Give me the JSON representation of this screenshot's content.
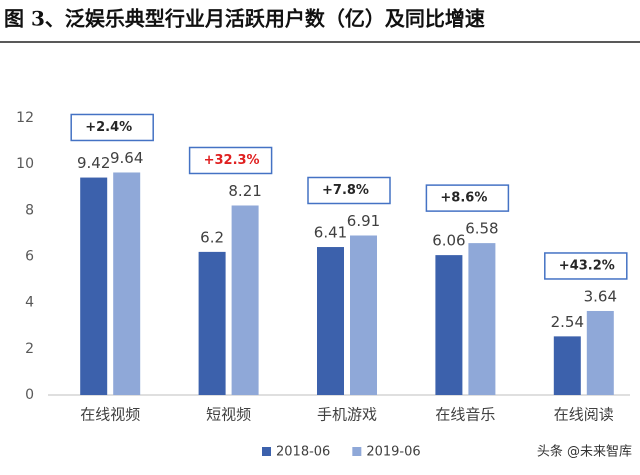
{
  "chart_data": {
    "type": "bar",
    "title": "图 3、泛娱乐典型行业月活跃用户数（亿）及同比增速",
    "categories": [
      "在线视频",
      "短视频",
      "手机游戏",
      "在线音乐",
      "在线阅读"
    ],
    "series": [
      {
        "name": "2018-06",
        "color": "#3c61ac",
        "values": [
          9.42,
          6.2,
          6.41,
          6.06,
          2.54
        ]
      },
      {
        "name": "2019-06",
        "color": "#8fa8d8",
        "values": [
          9.64,
          8.21,
          6.91,
          6.58,
          3.64
        ]
      }
    ],
    "annotations": [
      {
        "text": "+2.4%",
        "color": "#262626"
      },
      {
        "text": "+32.3%",
        "color": "#e02020"
      },
      {
        "text": "+7.8%",
        "color": "#262626"
      },
      {
        "text": "+8.6%",
        "color": "#262626"
      },
      {
        "text": "+43.2%",
        "color": "#262626"
      }
    ],
    "ylim": [
      0,
      12
    ],
    "yticks": [
      0,
      2,
      4,
      6,
      8,
      10,
      12
    ],
    "grid": false,
    "legend": "bottom",
    "watermark": "头条 @未来智库"
  }
}
